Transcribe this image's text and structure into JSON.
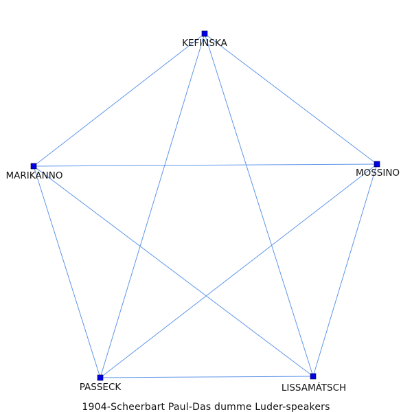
{
  "diagram": {
    "caption": "1904-Scheerbart  Paul-Das  dumme  Luder-speakers",
    "colors": {
      "edge": "#5f95e8",
      "node": "#0000e6",
      "text": "#111111",
      "background": "#ffffff"
    },
    "nodes": [
      {
        "id": "kefinska",
        "label": "KEFINSKA"
      },
      {
        "id": "marikanno",
        "label": "MARIKANNO"
      },
      {
        "id": "mossino",
        "label": "MOSSINO"
      },
      {
        "id": "passeck",
        "label": "PASSECK"
      },
      {
        "id": "lissamatsch",
        "label": "LISSAMÁTSCH"
      }
    ],
    "edges": [
      {
        "source": "kefinska",
        "target": "marikanno"
      },
      {
        "source": "kefinska",
        "target": "mossino"
      },
      {
        "source": "kefinska",
        "target": "passeck"
      },
      {
        "source": "kefinska",
        "target": "lissamatsch"
      },
      {
        "source": "marikanno",
        "target": "mossino"
      },
      {
        "source": "marikanno",
        "target": "passeck"
      },
      {
        "source": "marikanno",
        "target": "lissamatsch"
      },
      {
        "source": "mossino",
        "target": "passeck"
      },
      {
        "source": "mossino",
        "target": "lissamatsch"
      },
      {
        "source": "passeck",
        "target": "lissamatsch"
      }
    ]
  }
}
